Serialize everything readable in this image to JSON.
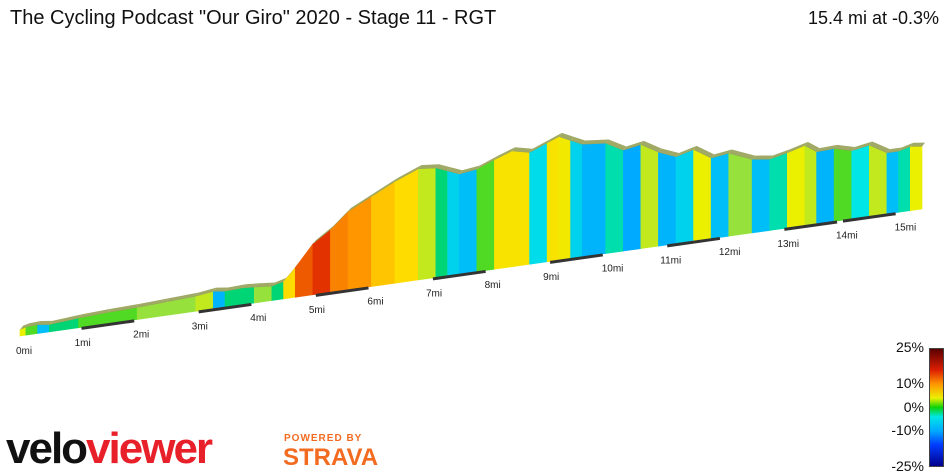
{
  "header": {
    "title": "The Cycling Podcast \"Our Giro\" 2020 - Stage 11 - RGT",
    "summary": "15.4 mi at -0.3%"
  },
  "chart_data": {
    "type": "area",
    "title": "The Cycling Podcast \"Our Giro\" 2020 - Stage 11 - RGT",
    "xlabel": "",
    "ylabel": "",
    "x_unit": "mi",
    "xlim": [
      0,
      15.4
    ],
    "x_ticks": [
      "0mi",
      "1mi",
      "2mi",
      "3mi",
      "4mi",
      "5mi",
      "6mi",
      "7mi",
      "8mi",
      "9mi",
      "10mi",
      "11mi",
      "12mi",
      "13mi",
      "14mi",
      "15mi"
    ],
    "x": [
      0,
      0.1,
      0.3,
      0.5,
      1,
      1.5,
      2,
      2.5,
      3,
      3.3,
      3.5,
      3.8,
      4,
      4.3,
      4.5,
      4.7,
      5,
      5.3,
      5.6,
      6,
      6.4,
      6.8,
      7.1,
      7.3,
      7.5,
      7.8,
      8.1,
      8.4,
      8.7,
      9,
      9.2,
      9.4,
      9.6,
      10,
      10.3,
      10.6,
      10.9,
      11.2,
      11.5,
      11.8,
      12.1,
      12.5,
      12.8,
      13.1,
      13.4,
      13.6,
      13.9,
      14.2,
      14.5,
      14.8,
      15,
      15.2,
      15.4
    ],
    "elevation_relative": [
      8,
      10,
      11,
      9,
      12,
      14,
      15,
      17,
      19,
      22,
      20,
      21,
      20,
      18,
      22,
      38,
      65,
      80,
      100,
      115,
      130,
      142,
      140,
      134,
      128,
      131,
      140,
      148,
      143,
      152,
      158,
      151,
      144,
      141,
      129,
      133,
      120,
      111,
      117,
      103,
      106,
      94,
      91,
      96,
      102,
      92,
      93,
      87,
      91,
      78,
      78,
      82,
      80
    ],
    "gradient_percent": [
      4,
      1,
      -8,
      -2,
      1,
      1,
      2,
      2,
      3,
      -9,
      -2,
      -2,
      2,
      -2,
      7,
      13,
      15,
      11,
      10,
      8,
      7,
      3,
      -2,
      -6,
      -8,
      1,
      6,
      6,
      -5,
      6,
      5,
      -6,
      -9,
      -3,
      -10,
      3,
      -9,
      -6,
      4,
      -8,
      2,
      -8,
      -3,
      4,
      3,
      -9,
      1,
      -4,
      3,
      -8,
      -3,
      4,
      1
    ],
    "legend": {
      "labels": [
        "25%",
        "10%",
        "0%",
        "-10%",
        "-25%"
      ],
      "values": [
        25,
        10,
        0,
        -10,
        -25
      ]
    }
  },
  "colors": {
    "accent_red": "#e8202a",
    "strava_orange": "#f26b21",
    "distance_marker": "#333333"
  },
  "branding": {
    "logo_dark": "velo",
    "logo_red": "viewer",
    "powered_by": "POWERED BY",
    "partner": "STRAVA"
  }
}
